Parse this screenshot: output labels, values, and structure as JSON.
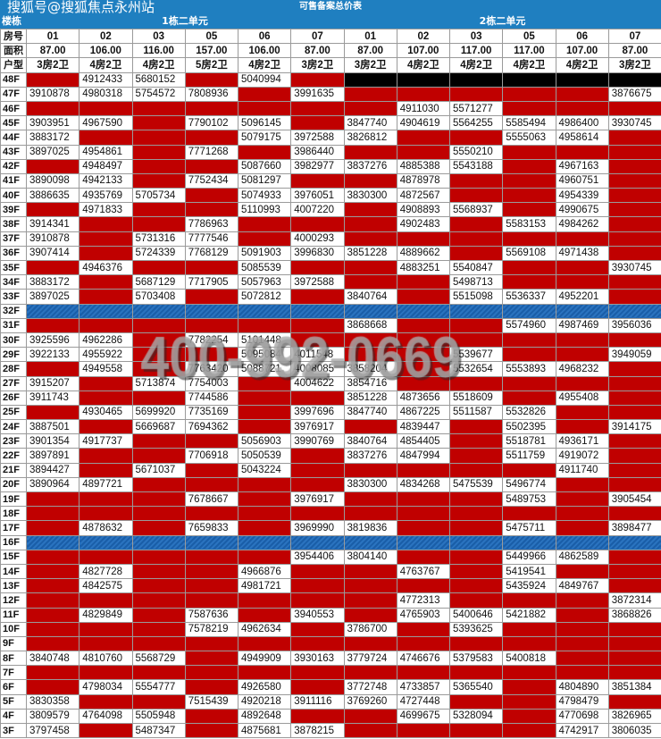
{
  "title": "可售备案总价表",
  "watermark_top": "搜狐号@搜狐焦点永州站",
  "watermark_center": "400-992-0669",
  "header": {
    "building_label": "楼栋",
    "room_label": "房号",
    "area_label": "面积",
    "type_label": "户型",
    "building_1": "1栋二单元",
    "building_2": "2栋二单元"
  },
  "colors": {
    "header_blue": "#1f7fc0",
    "sold_red": "#c00000",
    "blocked_black": "#000000"
  },
  "left_units": {
    "rooms": [
      "01",
      "02",
      "03",
      "05",
      "06",
      "07"
    ],
    "areas": [
      "87.00",
      "106.00",
      "116.00",
      "157.00",
      "106.00",
      "87.00"
    ],
    "types": [
      "3房2卫",
      "4房2卫",
      "4房2卫",
      "5房2卫",
      "4房2卫",
      "3房2卫"
    ]
  },
  "right_units": {
    "rooms": [
      "01",
      "02",
      "03",
      "05",
      "06",
      "07"
    ],
    "areas": [
      "87.00",
      "107.00",
      "117.00",
      "117.00",
      "107.00",
      "87.00"
    ],
    "types": [
      "3房2卫",
      "4房2卫",
      "4房2卫",
      "4房2卫",
      "4房2卫",
      "3房2卫"
    ]
  },
  "rows": [
    {
      "floor": "48F",
      "left": [
        null,
        "4912433",
        "5680152",
        null,
        "5040994",
        null
      ],
      "right_blocked": true
    },
    {
      "floor": "47F",
      "left": [
        "3910878",
        "4980318",
        "5754572",
        "7808936",
        null,
        "3991635"
      ],
      "right": [
        null,
        null,
        null,
        null,
        null,
        "3876675"
      ]
    },
    {
      "floor": "46F",
      "left": [
        null,
        null,
        null,
        null,
        null,
        null
      ],
      "right": [
        null,
        "4911030",
        "5571277",
        null,
        null,
        null
      ]
    },
    {
      "floor": "45F",
      "left": [
        "3903951",
        "4967590",
        null,
        "7790102",
        "5096145",
        null
      ],
      "right": [
        "3847740",
        "4904619",
        "5564255",
        "5585494",
        "4986400",
        "3930745"
      ]
    },
    {
      "floor": "44F",
      "left": [
        "3883172",
        null,
        null,
        null,
        "5079175",
        "3972588"
      ],
      "right": [
        "3826812",
        null,
        null,
        "5555063",
        "4958614",
        null
      ]
    },
    {
      "floor": "43F",
      "left": [
        "3897025",
        "4954861",
        null,
        "7771268",
        null,
        "3986440"
      ],
      "right": [
        null,
        null,
        "5550210",
        null,
        null,
        null
      ]
    },
    {
      "floor": "42F",
      "left": [
        null,
        "4948497",
        null,
        null,
        "5087660",
        "3982977"
      ],
      "right": [
        "3837276",
        "4885388",
        "5543188",
        null,
        "4967163",
        null
      ]
    },
    {
      "floor": "41F",
      "left": [
        "3890098",
        "4942133",
        null,
        "7752434",
        "5081297",
        null
      ],
      "right": [
        null,
        "4878978",
        null,
        null,
        "4960751",
        null
      ]
    },
    {
      "floor": "40F",
      "left": [
        "3886635",
        "4935769",
        "5705734",
        null,
        "5074933",
        "3976051"
      ],
      "right": [
        "3830300",
        "4872567",
        null,
        null,
        "4954339",
        null
      ]
    },
    {
      "floor": "39F",
      "left": [
        null,
        "4971833",
        null,
        null,
        "5110993",
        "4007220"
      ],
      "right": [
        null,
        "4908893",
        "5568937",
        null,
        "4990675",
        null
      ]
    },
    {
      "floor": "38F",
      "left": [
        "3914341",
        null,
        null,
        "7786963",
        null,
        null
      ],
      "right": [
        null,
        "4902483",
        null,
        "5583153",
        "4984262",
        null
      ]
    },
    {
      "floor": "37F",
      "left": [
        "3910878",
        null,
        "5731316",
        "7777546",
        null,
        "4000293"
      ],
      "right": [
        null,
        null,
        null,
        null,
        null,
        null
      ]
    },
    {
      "floor": "36F",
      "left": [
        "3907414",
        null,
        "5724339",
        "7768129",
        "5091903",
        "3996830"
      ],
      "right": [
        "3851228",
        "4889662",
        null,
        "5569108",
        "4971438",
        null
      ]
    },
    {
      "floor": "35F",
      "left": [
        null,
        "4946376",
        null,
        null,
        "5085539",
        null
      ],
      "right": [
        null,
        "4883251",
        "5540847",
        null,
        null,
        "3930745"
      ]
    },
    {
      "floor": "34F",
      "left": [
        "3883172",
        null,
        "5687129",
        "7717905",
        "5057963",
        "3972588"
      ],
      "right": [
        null,
        null,
        "5498713",
        null,
        null,
        null
      ]
    },
    {
      "floor": "33F",
      "left": [
        "3897025",
        null,
        "5703408",
        null,
        "5072812",
        null
      ],
      "right": [
        "3840764",
        null,
        "5515098",
        "5536337",
        "4952201",
        null
      ]
    },
    {
      "floor": "32F",
      "blue": true
    },
    {
      "floor": "31F",
      "left": [
        null,
        null,
        null,
        null,
        null,
        null
      ],
      "right": [
        "3868668",
        null,
        null,
        "5574960",
        "4987469",
        "3956036"
      ]
    },
    {
      "floor": "30F",
      "left": [
        "3925596",
        "4962286",
        null,
        "7782254",
        "5101448",
        null
      ],
      "right": [
        null,
        null,
        null,
        null,
        null,
        null
      ]
    },
    {
      "floor": "29F",
      "left": [
        "3922133",
        "4955922",
        null,
        null,
        "5095084",
        "4011548"
      ],
      "right": [
        null,
        null,
        "5539677",
        null,
        null,
        "3949059"
      ]
    },
    {
      "floor": "28F",
      "left": [
        null,
        "4949558",
        null,
        "7763420",
        "5088721",
        "4008085"
      ],
      "right": [
        "3858204",
        null,
        "5532654",
        "5553893",
        "4968232",
        null
      ]
    },
    {
      "floor": "27F",
      "left": [
        "3915207",
        null,
        "5713874",
        "7754003",
        null,
        "4004622"
      ],
      "right": [
        "3854716",
        null,
        null,
        null,
        null,
        null
      ]
    },
    {
      "floor": "26F",
      "left": [
        "3911743",
        null,
        null,
        "7744586",
        null,
        null
      ],
      "right": [
        "3851228",
        "4873656",
        "5518609",
        null,
        "4955408",
        null
      ]
    },
    {
      "floor": "25F",
      "left": [
        null,
        "4930465",
        "5699920",
        "7735169",
        null,
        "3997696"
      ],
      "right": [
        "3847740",
        "4867225",
        "5511587",
        "5532826",
        null,
        null
      ]
    },
    {
      "floor": "24F",
      "left": [
        "3887501",
        null,
        "5669687",
        "7694362",
        null,
        "3976917"
      ],
      "right": [
        null,
        "4839447",
        null,
        "5502395",
        null,
        "3914175"
      ]
    },
    {
      "floor": "23F",
      "left": [
        "3901354",
        "4917737",
        null,
        null,
        "5056903",
        "3990769"
      ],
      "right": [
        "3840764",
        "4854405",
        null,
        "5518781",
        "4936171",
        null
      ]
    },
    {
      "floor": "22F",
      "left": [
        "3897891",
        null,
        null,
        "7706918",
        "5050539",
        null
      ],
      "right": [
        "3837276",
        "4847994",
        null,
        "5511759",
        "4919072",
        null
      ]
    },
    {
      "floor": "21F",
      "left": [
        "3894427",
        null,
        "5671037",
        null,
        "5043224",
        null
      ],
      "right": [
        null,
        null,
        null,
        null,
        "4911740",
        null
      ]
    },
    {
      "floor": "20F",
      "left": [
        "3890964",
        "4897721",
        null,
        null,
        null,
        null
      ],
      "right": [
        "3830300",
        "4834268",
        "5475539",
        "5496774",
        null,
        null
      ]
    },
    {
      "floor": "19F",
      "left": [
        null,
        null,
        null,
        "7678667",
        null,
        "3976917"
      ],
      "right": [
        null,
        null,
        null,
        "5489753",
        null,
        "3905454"
      ]
    },
    {
      "floor": "18F",
      "left": [
        null,
        null,
        null,
        null,
        null,
        null
      ],
      "right": [
        null,
        null,
        null,
        null,
        null,
        null
      ]
    },
    {
      "floor": "17F",
      "left": [
        null,
        "4878632",
        null,
        "7659833",
        null,
        "3969990"
      ],
      "right": [
        "3819836",
        null,
        null,
        "5475711",
        null,
        "3898477"
      ]
    },
    {
      "floor": "16F",
      "blue": true
    },
    {
      "floor": "15F",
      "left": [
        null,
        null,
        null,
        null,
        null,
        "3954406"
      ],
      "right": [
        "3804140",
        null,
        null,
        "5449966",
        "4862589",
        null
      ]
    },
    {
      "floor": "14F",
      "left": [
        null,
        "4827728",
        null,
        null,
        "4966876",
        null
      ],
      "right": [
        null,
        "4763767",
        null,
        "5419541",
        null,
        null
      ]
    },
    {
      "floor": "13F",
      "left": [
        null,
        "4842575",
        null,
        null,
        "4981721",
        null
      ],
      "right": [
        null,
        null,
        null,
        "5435924",
        "4849767",
        null
      ]
    },
    {
      "floor": "12F",
      "left": [
        null,
        null,
        null,
        null,
        null,
        null
      ],
      "right": [
        null,
        "4772313",
        null,
        null,
        null,
        "3872314"
      ]
    },
    {
      "floor": "11F",
      "left": [
        null,
        "4829849",
        null,
        "7587636",
        null,
        "3940553"
      ],
      "right": [
        null,
        "4765903",
        "5400646",
        "5421882",
        null,
        "3868826"
      ]
    },
    {
      "floor": "10F",
      "left": [
        null,
        null,
        null,
        "7578219",
        "4962634",
        null
      ],
      "right": [
        "3786700",
        null,
        "5393625",
        null,
        null,
        null
      ]
    },
    {
      "floor": "9F",
      "left": [
        null,
        null,
        null,
        null,
        null,
        null
      ],
      "right": [
        null,
        null,
        null,
        null,
        null,
        null
      ]
    },
    {
      "floor": "8F",
      "left": [
        "3840748",
        "4810760",
        "5568729",
        null,
        "4949909",
        "3930163"
      ],
      "right": [
        "3779724",
        "4746676",
        "5379583",
        "5400818",
        null,
        null
      ]
    },
    {
      "floor": "7F",
      "left": [
        null,
        null,
        null,
        null,
        null,
        null
      ],
      "right": [
        null,
        null,
        null,
        null,
        null,
        null
      ]
    },
    {
      "floor": "6F",
      "left": [
        null,
        "4798034",
        "5554777",
        null,
        "4926580",
        null
      ],
      "right": [
        "3772748",
        "4733857",
        "5365540",
        null,
        "4804890",
        "3851384"
      ]
    },
    {
      "floor": "5F",
      "left": [
        "3830358",
        null,
        null,
        "7515439",
        "4920218",
        "3911116"
      ],
      "right": [
        "3769260",
        "4727448",
        null,
        null,
        "4798479",
        null
      ]
    },
    {
      "floor": "4F",
      "left": [
        "3809579",
        "4764098",
        "5505948",
        null,
        "4892648",
        null
      ],
      "right": [
        null,
        "4699675",
        "5328094",
        null,
        "4770698",
        "3826965"
      ]
    },
    {
      "floor": "3F",
      "left": [
        "3797458",
        null,
        "5487347",
        null,
        "4875681",
        "3878215"
      ],
      "right": [
        null,
        null,
        null,
        null,
        "4742917",
        "3806035"
      ]
    }
  ]
}
